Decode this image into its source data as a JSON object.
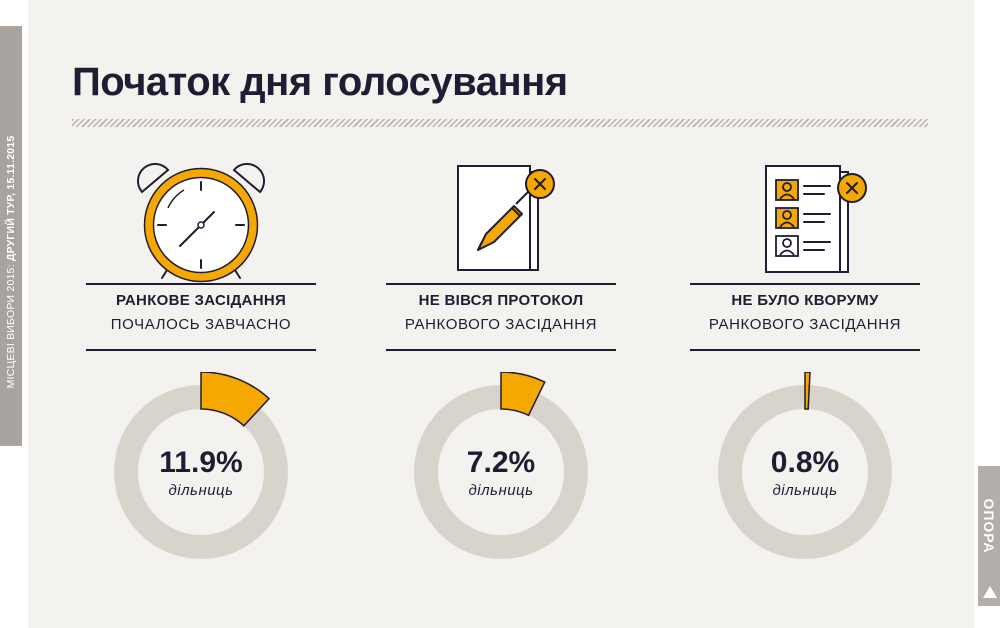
{
  "side_caption": {
    "regular": "МІСЦЕВІ ВИБОРИ 2015: ",
    "bold": "ДРУГИЙ ТУР, 15.11.2015"
  },
  "brand": "ОПОРА",
  "title": "Початок дня голосування",
  "colors": {
    "accent": "#f5a800",
    "ring": "#d9d4cb",
    "ink": "#1f1d33",
    "background": "#f4f2ee"
  },
  "items": [
    {
      "icon": "alarm-clock-icon",
      "line1": "РАНКОВЕ ЗАСІДАННЯ",
      "line2": "ПОЧАЛОСЬ ЗАВЧАСНО",
      "value_label": "11.9%",
      "unit": "дільниць"
    },
    {
      "icon": "document-pen-icon",
      "line1": "НЕ ВІВСЯ ПРОТОКОЛ",
      "line2": "РАНКОВОГО ЗАСІДАННЯ",
      "value_label": "7.2%",
      "unit": "дільниць"
    },
    {
      "icon": "candidate-list-icon",
      "line1": "НЕ БУЛО КВОРУМУ",
      "line2": "РАНКОВОГО ЗАСІДАННЯ",
      "value_label": "0.8%",
      "unit": "дільниць"
    }
  ],
  "chart_data": [
    {
      "type": "pie",
      "title": "",
      "values": [
        11.9
      ],
      "max": 100
    },
    {
      "type": "pie",
      "title": "",
      "values": [
        7.2
      ],
      "max": 100
    },
    {
      "type": "pie",
      "title": "",
      "values": [
        0.8
      ],
      "max": 100
    }
  ]
}
